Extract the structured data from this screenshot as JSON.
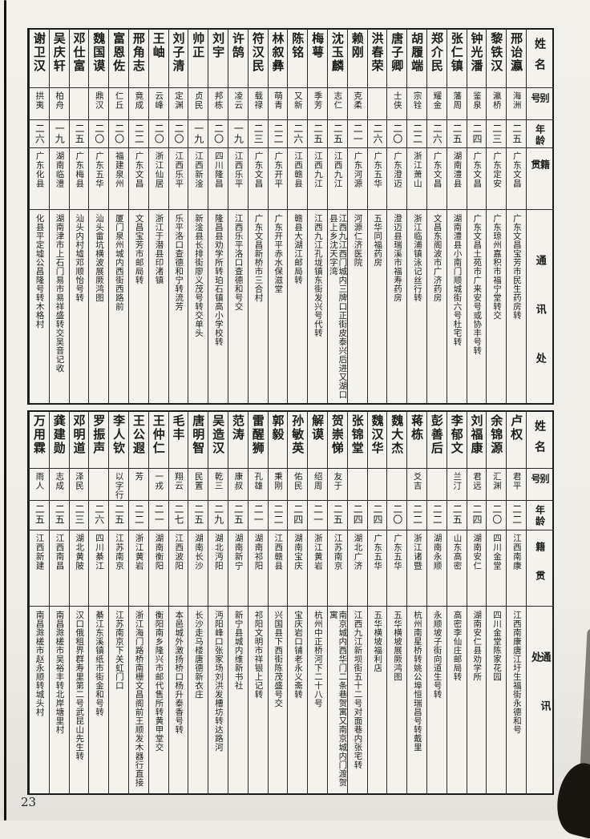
{
  "page": {
    "number": "23"
  },
  "headers": {
    "name": "姓名",
    "alias": "别号",
    "age": "年龄",
    "native": "籍贯",
    "address": "通讯处"
  },
  "tables": [
    {
      "people": [
        {
          "name": "邢诒瀛",
          "alias": "海洲",
          "age": "二五",
          "native": "广东文昌",
          "address": "广东文昌宝芳市民生药房转"
        },
        {
          "name": "黎铁汉",
          "alias": "瀛桥",
          "age": "二三",
          "native": "广东定安",
          "address": "广东琼州嘉积市福宁堂转交"
        },
        {
          "name": "钟光潘",
          "alias": "鉴泉",
          "age": "二四",
          "native": "广东文昌",
          "address": "广东文昌土苑市广来安号或协丰号转"
        },
        {
          "name": "张仁镇",
          "alias": "藩周",
          "age": "二五",
          "native": "湖南澧县",
          "address": "湖南澧县小南门顺城街六号杜宅转"
        },
        {
          "name": "郑介民",
          "alias": "耀金",
          "age": "二六",
          "native": "广东文昌",
          "address": "文昌东阁波市广济药房"
        },
        {
          "name": "胡履端",
          "alias": "宗铨",
          "age": "二二",
          "native": "浙江萧山",
          "address": "浙江临浦镇泳记丝行转"
        },
        {
          "name": "唐子卿",
          "alias": "士侠",
          "age": "二〇",
          "native": "广东澄迈",
          "address": "澄迈县瑞溪市福寿药房"
        },
        {
          "name": "洪春荣",
          "alias": "",
          "age": "二六",
          "native": "广东五华",
          "address": "五华同福药房"
        },
        {
          "name": "赖刚",
          "alias": "克柔",
          "age": "二一",
          "native": "广东河源",
          "address": "河源仁济医院"
        },
        {
          "name": "沈玉麟",
          "alias": "志仁",
          "age": "二五",
          "native": "江西九江",
          "address": "江西九江西门城内三牌口正街皮泰兴后进又湖口县上乡沈天字湾"
        },
        {
          "name": "梅萼",
          "alias": "季芳",
          "age": "二五",
          "native": "江西九江",
          "address": "江西九江孔垅镇东街发兴号代转"
        },
        {
          "name": "陈铭",
          "alias": "又新",
          "age": "二六",
          "native": "江西赣县",
          "address": "赣县大湖江邮局转"
        },
        {
          "name": "林叙彝",
          "alias": "萌青",
          "age": "二二",
          "native": "广东开平",
          "address": "广东开平赤水保滋堂"
        },
        {
          "name": "符汉民",
          "alias": "载禄",
          "age": "二三",
          "native": "广东文昌",
          "address": "广东文昌新桥市三合村"
        },
        {
          "name": "许鹄",
          "alias": "凌云",
          "age": "一九",
          "native": "江西乐平",
          "address": "江西乐平洛口查德和号交"
        },
        {
          "name": "刘宇",
          "alias": "邦栋",
          "age": "二〇",
          "native": "四川隆昌",
          "address": "隆昌县劝学所转珀石镇高小学校转"
        },
        {
          "name": "帅正",
          "alias": "贞民",
          "age": "一九",
          "native": "江西新淦",
          "address": "新淦县长排街廖义茂号转交单头"
        },
        {
          "name": "刘子清",
          "alias": "定渊",
          "age": "二〇",
          "native": "江西乐平",
          "address": "乐平洛口查德和宁转流芳"
        },
        {
          "name": "王岫",
          "alias": "云峰",
          "age": "二〇",
          "native": "浙江仙居",
          "address": "浙江于潜县印渚镇"
        },
        {
          "name": "邢角志",
          "alias": "竟成",
          "age": "二二",
          "native": "广东文昌",
          "address": "文昌宝芳市邮局转"
        },
        {
          "name": "富恩佐",
          "alias": "仁丘",
          "age": "二〇",
          "native": "福建泉州",
          "address": "厦门泉州城内西街西路前"
        },
        {
          "name": "魏国谟",
          "alias": "鼎汉",
          "age": "二〇",
          "native": "广东五华",
          "address": "汕头畲坑横波展厥鸿图"
        },
        {
          "name": "邓仕富",
          "alias": "",
          "age": "二五",
          "native": "广东梅县",
          "address": "汕头内村墟邓顺怡号转"
        },
        {
          "name": "吴庆轩",
          "alias": "柏舟",
          "age": "一九",
          "native": "湖南临澧",
          "address": "湖南津市上石门易市易祥盛转交吴音记收"
        },
        {
          "name": "谢卫汉",
          "alias": "拱夷",
          "age": "二六",
          "native": "广东化县",
          "address": "化县平定墟公昌隆号转木格村"
        }
      ]
    },
    {
      "people": [
        {
          "name": "卢权",
          "alias": "君平",
          "age": "二二",
          "native": "江西南康",
          "address": "江西南康唐江圩生福街永德和号"
        },
        {
          "name": "余锦源",
          "alias": "汇渊",
          "age": "二〇",
          "native": "四川金堂",
          "address": "四川金堂陈家花园"
        },
        {
          "name": "刘福康",
          "alias": "君远",
          "age": "二四",
          "native": "湖南安仁",
          "address": "湖南安仁县劝学所"
        },
        {
          "name": "李郁文",
          "alias": "兰汀",
          "age": "二五",
          "native": "山东高密",
          "address": "高密李仙庄邮局转"
        },
        {
          "name": "彭善后",
          "alias": "",
          "age": "二二",
          "native": "湖南永顺",
          "address": "永顺坡子街向道生号转"
        },
        {
          "name": "蒋栋",
          "alias": "爻吉",
          "age": "二二",
          "native": "浙江诸暨",
          "address": "杭州南星桥转姚公埠恒瑞昌号转戴里"
        },
        {
          "name": "魏大杰",
          "alias": "",
          "age": "二〇",
          "native": "广东五华",
          "address": "五华横坡展厥鸿图"
        },
        {
          "name": "魏汉华",
          "alias": "",
          "age": "二四",
          "native": "广东五华",
          "address": "五华横坡福利店"
        },
        {
          "name": "张锦堂",
          "alias": "",
          "age": "二四",
          "native": "湖北广济",
          "address": "江西九江新坝街五十二号对面巷内张宅转"
        },
        {
          "name": "贺崇悌",
          "alias": "友于",
          "age": "二五",
          "native": "江苏南京",
          "address": "南京城内西华门二条巷贺寓又南京城内门渡贺寓"
        },
        {
          "name": "解谟",
          "alias": "绍周",
          "age": "二一",
          "native": "浙江黄岩",
          "address": "杭州中正桥河下二十八号"
        },
        {
          "name": "孙敏英",
          "alias": "佑民",
          "age": "二四",
          "native": "湖南宝庆",
          "address": "宝庆岩口铺老永义斋转"
        },
        {
          "name": "郭毅",
          "alias": "秉刚",
          "age": "二二",
          "native": "江西赣县",
          "address": "兴国县下西街陈茂盛号交"
        },
        {
          "name": "雷醒狮",
          "alias": "孔雄",
          "age": "二一",
          "native": "湖南祁阳",
          "address": "祁阳文明市祥银上记转"
        },
        {
          "name": "范涛",
          "alias": "康叔",
          "age": "二五",
          "native": "湖南新宁",
          "address": "新宁县城内维新书社"
        },
        {
          "name": "吴造汉",
          "alias": "乾三",
          "age": "二九",
          "native": "湖北沔阳",
          "address": "沔阳峰口张家场刘洪发槽坊转达路河"
        },
        {
          "name": "唐明智",
          "alias": "民置",
          "age": "二五",
          "native": "湖南长沙",
          "address": "长沙走马楼唐德新衣庄"
        },
        {
          "name": "毛丰",
          "alias": "翔云",
          "age": "二七",
          "native": "江西波阳",
          "address": "本邑城外激扬桥口杨升泰香号转"
        },
        {
          "name": "王仲仁",
          "alias": "一戎",
          "age": "二一",
          "native": "湖南衡阳",
          "address": "衡阳南乡隆兴市邮代售所转黄甲堂交"
        },
        {
          "name": "王公遐",
          "alias": "芳",
          "age": "二二",
          "native": "浙江黄岩",
          "address": "浙江海门路桥南栅文昌阁前王顺发木器行直接"
        },
        {
          "name": "李人钦",
          "alias": "以字行",
          "age": "二五",
          "native": "江苏南京",
          "address": "江苏南京下关虹门口"
        },
        {
          "name": "罗振声",
          "alias": "",
          "age": "二六",
          "native": "四川綦江",
          "address": "綦江东溪镇纸市街金和号转"
        },
        {
          "name": "邓明道",
          "alias": "泽民",
          "age": "二三",
          "native": "湖北黄陂",
          "address": "汉口俄租界群寿里第二号武昆山先生转"
        },
        {
          "name": "龚建勋",
          "alias": "志成",
          "age": "二五",
          "native": "江西南昌",
          "address": "南昌滁槎市吴裕丰转北岸塘里村"
        },
        {
          "name": "万用霖",
          "alias": "雨人",
          "age": "二五",
          "native": "江西新建",
          "address": "南昌滁槎市赵永顺转城头村"
        }
      ]
    }
  ]
}
